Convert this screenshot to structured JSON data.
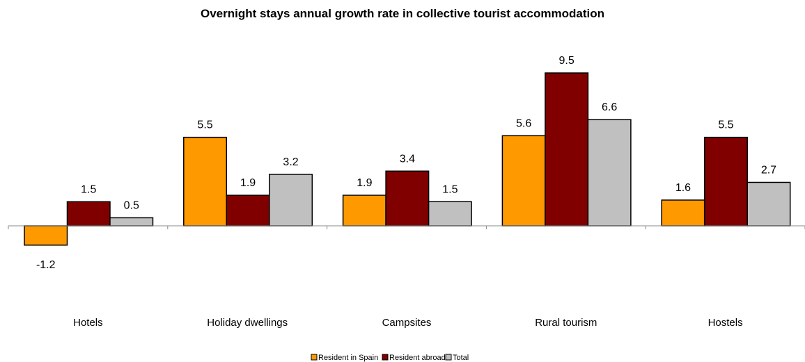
{
  "chart_data": {
    "type": "bar",
    "title": "Overnight stays annual growth rate in collective tourist accommodation",
    "categories": [
      "Hotels",
      "Holiday dwellings",
      "Campsites",
      "Rural tourism",
      "Hostels"
    ],
    "series": [
      {
        "name": "Resident in Spain",
        "color": "#FF9900",
        "values": [
          -1.2,
          5.5,
          1.9,
          5.6,
          1.6
        ]
      },
      {
        "name": "Resident abroad",
        "color": "#800000",
        "values": [
          1.5,
          1.9,
          3.4,
          9.5,
          5.5
        ]
      },
      {
        "name": "Total",
        "color": "#C0C0C0",
        "values": [
          0.5,
          3.2,
          1.5,
          6.6,
          2.7
        ]
      }
    ],
    "legend": "bottom"
  }
}
